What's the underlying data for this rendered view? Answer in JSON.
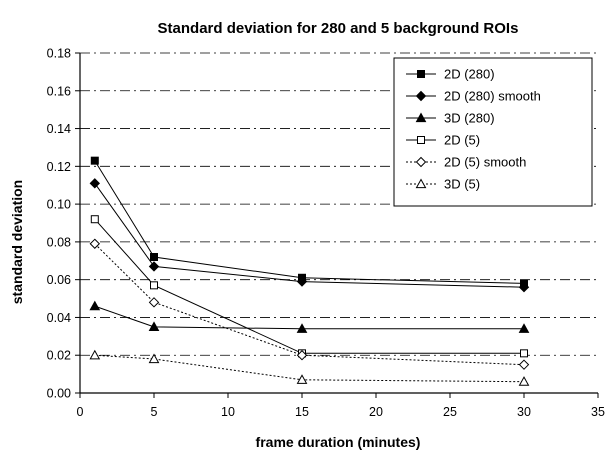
{
  "chart_data": {
    "type": "line",
    "title": "Standard deviation for 280 and 5 background ROIs",
    "xlabel": "frame duration (minutes)",
    "ylabel": "standard deviation",
    "xlim": [
      0,
      35
    ],
    "ylim": [
      0,
      0.18
    ],
    "xticks": [
      "0",
      "5",
      "10",
      "15",
      "20",
      "25",
      "30",
      "35"
    ],
    "yticks": [
      "0.00",
      "0.02",
      "0.04",
      "0.06",
      "0.08",
      "0.10",
      "0.12",
      "0.14",
      "0.16",
      "0.18"
    ],
    "grid": "horizontal dashed",
    "legend_position": "top-right",
    "x": [
      1,
      5,
      15,
      30
    ],
    "series": [
      {
        "name": "2D (280)",
        "values": [
          0.123,
          0.072,
          0.061,
          0.058
        ],
        "marker": "square-filled",
        "line": "solid"
      },
      {
        "name": "2D (280) smooth",
        "values": [
          0.111,
          0.067,
          0.059,
          0.056
        ],
        "marker": "diamond-filled",
        "line": "solid"
      },
      {
        "name": "3D (280)",
        "values": [
          0.046,
          0.035,
          0.034,
          0.034
        ],
        "marker": "triangle-filled",
        "line": "solid"
      },
      {
        "name": "2D (5)",
        "values": [
          0.092,
          0.057,
          0.021,
          0.021
        ],
        "marker": "square-open",
        "line": "solid"
      },
      {
        "name": "2D (5) smooth",
        "values": [
          0.079,
          0.048,
          0.02,
          0.015
        ],
        "marker": "diamond-open",
        "line": "dotted"
      },
      {
        "name": "3D (5)",
        "values": [
          0.02,
          0.018,
          0.007,
          0.006
        ],
        "marker": "triangle-open",
        "line": "dotted"
      }
    ]
  }
}
